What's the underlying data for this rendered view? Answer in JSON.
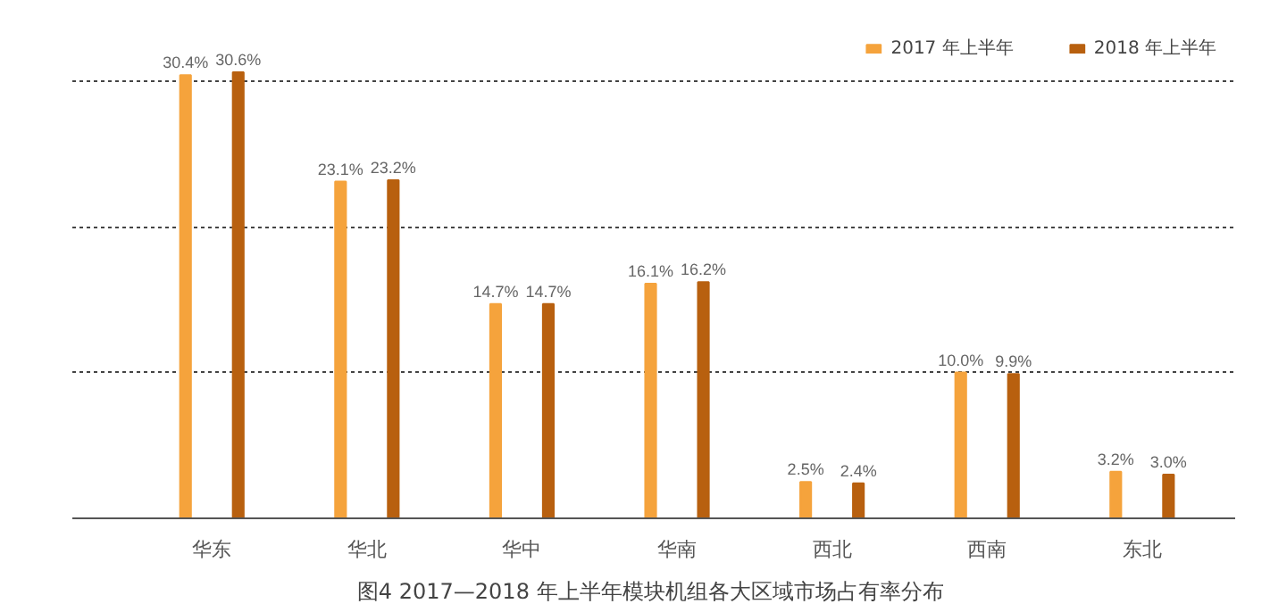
{
  "chart_data": {
    "type": "bar",
    "categories": [
      "华东",
      "华北",
      "华中",
      "华南",
      "西北",
      "西南",
      "东北"
    ],
    "series": [
      {
        "name": "2017 年上半年",
        "color": "#f5a33c",
        "values": [
          30.4,
          23.1,
          14.7,
          16.1,
          2.5,
          10.0,
          3.2
        ],
        "value_labels": [
          "30.4%",
          "23.1%",
          "14.7%",
          "16.1%",
          "2.5%",
          "10.0%",
          "3.2%"
        ]
      },
      {
        "name": "2018 年上半年",
        "color": "#b8600f",
        "values": [
          30.6,
          23.2,
          14.7,
          16.2,
          2.4,
          9.9,
          3.0
        ],
        "value_labels": [
          "30.6%",
          "23.2%",
          "14.7%",
          "16.2%",
          "2.4%",
          "9.9%",
          "3.0%"
        ]
      }
    ],
    "tick_labels": "x",
    "grid": "y",
    "legend": "top right",
    "annotations": [
      "图4  2017—2018 年上半年模块机组各大区域市场占有率分布"
    ]
  }
}
